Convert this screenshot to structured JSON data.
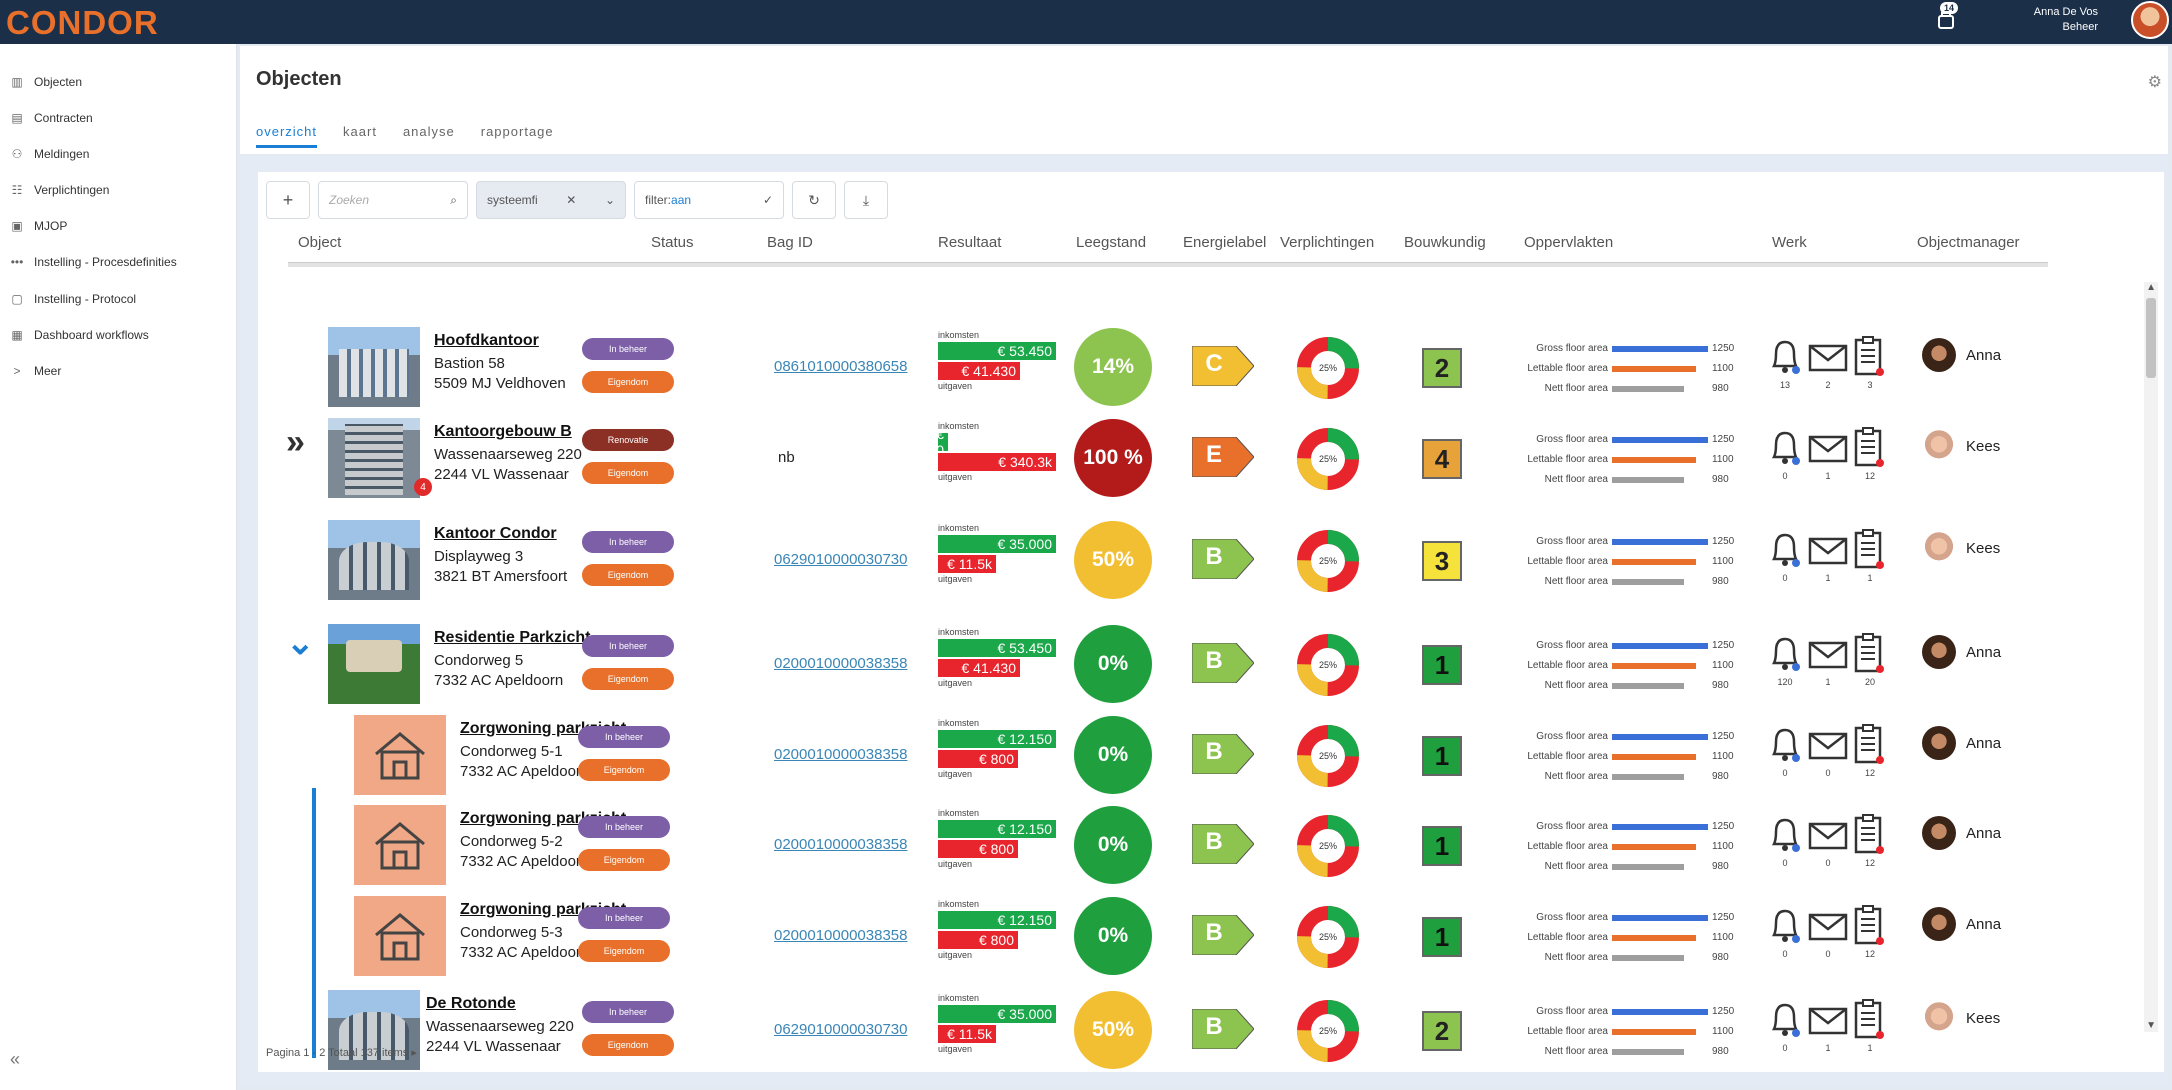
{
  "app": {
    "logo": "CONDOR",
    "notifications": "14",
    "user_name": "Anna De Vos",
    "user_role": "Beheer"
  },
  "sidebar": {
    "items": [
      {
        "label": "Objecten",
        "icon": "building-icon"
      },
      {
        "label": "Contracten",
        "icon": "document-icon"
      },
      {
        "label": "Meldingen",
        "icon": "alert-icon"
      },
      {
        "label": "Verplichtingen",
        "icon": "list-icon"
      },
      {
        "label": "MJOP",
        "icon": "mjop-icon"
      },
      {
        "label": "Instelling - Procesdefinities",
        "icon": "process-icon"
      },
      {
        "label": "Instelling - Protocol",
        "icon": "protocol-icon"
      },
      {
        "label": "Dashboard workflows",
        "icon": "dashboard-icon"
      },
      {
        "label": "Meer",
        "icon": "chevron-right-icon"
      }
    ],
    "collapse": "«"
  },
  "page": {
    "title": "Objecten",
    "tabs": [
      "overzicht",
      "kaart",
      "analyse",
      "rapportage"
    ],
    "active_tab": "overzicht"
  },
  "toolbar": {
    "add": "+",
    "search_placeholder": "Zoeken",
    "chip": "systeemfi",
    "filter_key": "filter:",
    "filter_val": "aan"
  },
  "columns": [
    "Object",
    "Status",
    "Bag ID",
    "Resultaat",
    "Leegstand",
    "Energielabel",
    "Verplichtingen",
    "Bouwkundig",
    "Oppervlakten",
    "Werk",
    "Objectmanager"
  ],
  "result_labels": {
    "in": "inkomsten",
    "out": "uitgaven"
  },
  "area_labels": [
    "Gross floor area",
    "Lettable floor area",
    "Nett floor area"
  ],
  "rows": [
    {
      "name": "Hoofdkantoor",
      "addr1": "Bastion 58",
      "addr2": "5509 MJ  Veldhoven",
      "status1": "In beheer",
      "status2": "Eigendom",
      "bag": "0861010000380658",
      "income": "€ 53.450",
      "expense": "€ 41.430",
      "vacancy": "14%",
      "energy": "C",
      "constr": "2",
      "areas": [
        "1250",
        "1100",
        "980"
      ],
      "work": [
        "13",
        "2",
        "3"
      ],
      "manager": "Anna"
    },
    {
      "name": "Kantoorgebouw B",
      "addr1": "Wassenaarseweg 220",
      "addr2": "2244 VL  Wassenaar",
      "status1": "Renovatie",
      "status2": "Eigendom",
      "bag": "nb",
      "income": "€ 0",
      "expense": "€ 340.3k",
      "vacancy": "100 %",
      "energy": "E",
      "constr": "4",
      "areas": [
        "1250",
        "1100",
        "980"
      ],
      "work": [
        "0",
        "1",
        "12"
      ],
      "manager": "Kees",
      "badge": "4"
    },
    {
      "name": "Kantoor Condor",
      "addr1": "Displayweg 3",
      "addr2": "3821 BT Amersfoort",
      "status1": "In beheer",
      "status2": "Eigendom",
      "bag": "0629010000030730",
      "income": "€ 35.000",
      "expense": "€ 11.5k",
      "vacancy": "50%",
      "energy": "B",
      "constr": "3",
      "areas": [
        "1250",
        "1100",
        "980"
      ],
      "work": [
        "0",
        "1",
        "1"
      ],
      "manager": "Kees"
    },
    {
      "name": "Residentie Parkzicht",
      "addr1": "Condorweg 5",
      "addr2": "7332 AC  Apeldoorn",
      "status1": "In beheer",
      "status2": "Eigendom",
      "bag": "0200010000038358",
      "income": "€ 53.450",
      "expense": "€ 41.430",
      "vacancy": "0%",
      "energy": "B",
      "constr": "1",
      "areas": [
        "1250",
        "1100",
        "980"
      ],
      "work": [
        "120",
        "1",
        "20"
      ],
      "manager": "Anna"
    },
    {
      "name": "Zorgwoning parkzicht",
      "addr1": "Condorweg 5-1",
      "addr2": "7332 AC  Apeldoorn",
      "status1": "In beheer",
      "status2": "Eigendom",
      "bag": "0200010000038358",
      "income": "€ 12.150",
      "expense": "€ 800",
      "vacancy": "0%",
      "energy": "B",
      "constr": "1",
      "areas": [
        "1250",
        "1100",
        "980"
      ],
      "work": [
        "0",
        "0",
        "12"
      ],
      "manager": "Anna"
    },
    {
      "name": "Zorgwoning parkzicht",
      "addr1": "Condorweg 5-2",
      "addr2": "7332 AC  Apeldoorn",
      "status1": "In beheer",
      "status2": "Eigendom",
      "bag": "0200010000038358",
      "income": "€ 12.150",
      "expense": "€ 800",
      "vacancy": "0%",
      "energy": "B",
      "constr": "1",
      "areas": [
        "1250",
        "1100",
        "980"
      ],
      "work": [
        "0",
        "0",
        "12"
      ],
      "manager": "Anna"
    },
    {
      "name": "Zorgwoning parkzicht",
      "addr1": "Condorweg 5-3",
      "addr2": "7332 AC  Apeldoorn",
      "status1": "In beheer",
      "status2": "Eigendom",
      "bag": "0200010000038358",
      "income": "€ 12.150",
      "expense": "€ 800",
      "vacancy": "0%",
      "energy": "B",
      "constr": "1",
      "areas": [
        "1250",
        "1100",
        "980"
      ],
      "work": [
        "0",
        "0",
        "12"
      ],
      "manager": "Anna"
    },
    {
      "name": "De Rotonde",
      "addr1": "Wassenaarseweg 220",
      "addr2": "2244 VL  Wassenaar",
      "status1": "In beheer",
      "status2": "Eigendom",
      "bag": "0629010000030730",
      "income": "€ 35.000",
      "expense": "€ 11.5k",
      "vacancy": "50%",
      "energy": "B",
      "constr": "2",
      "areas": [
        "1250",
        "1100",
        "980"
      ],
      "work": [
        "0",
        "1",
        "1"
      ],
      "manager": "Kees"
    }
  ],
  "pagination": "Pagina 1 - 2 Totaal 137 items",
  "colors": {
    "accent": "#1a7fd4",
    "brand": "#e8702a",
    "topbar": "#1b2f48"
  }
}
